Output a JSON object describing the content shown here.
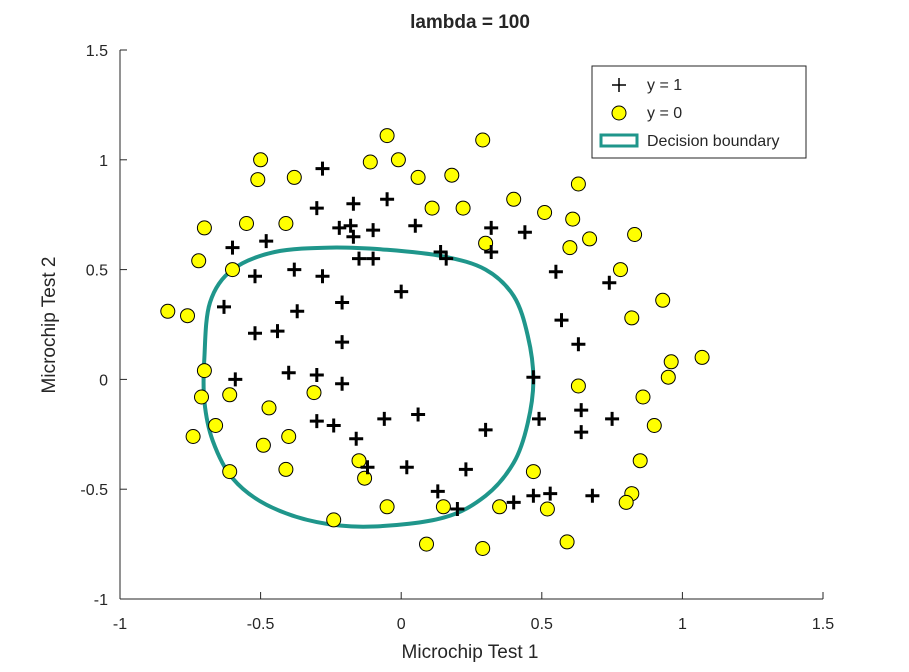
{
  "chart_data": {
    "type": "scatter",
    "title": "lambda = 100",
    "xlabel": "Microchip Test 1",
    "ylabel": "Microchip Test 2",
    "xlim": [
      -1,
      1.5
    ],
    "ylim": [
      -1,
      1.5
    ],
    "xticks": [
      -1,
      -0.5,
      0,
      0.5,
      1,
      1.5
    ],
    "yticks": [
      -1,
      -0.5,
      0,
      0.5,
      1,
      1.5
    ],
    "xtick_labels": [
      "-1",
      "-0.5",
      "0",
      "0.5",
      "1",
      "1.5"
    ],
    "ytick_labels": [
      "-1",
      "-0.5",
      "0",
      "0.5",
      "1",
      "1.5"
    ],
    "grid": false,
    "legend": {
      "position": "top-right",
      "entries": [
        {
          "label": "y = 1",
          "marker": "plus"
        },
        {
          "label": "y = 0",
          "marker": "circle"
        },
        {
          "label": "Decision boundary",
          "marker": "line"
        }
      ]
    },
    "colors": {
      "positive": "#000000",
      "negative_fill": "#ffff00",
      "negative_edge": "#000000",
      "boundary": "#1f968b"
    },
    "series": [
      {
        "name": "y = 1",
        "marker": "plus",
        "points": [
          [
            -0.28,
            0.96
          ],
          [
            -0.3,
            0.78
          ],
          [
            -0.17,
            0.8
          ],
          [
            -0.05,
            0.82
          ],
          [
            -0.22,
            0.69
          ],
          [
            -0.18,
            0.7
          ],
          [
            -0.17,
            0.65
          ],
          [
            -0.1,
            0.68
          ],
          [
            0.05,
            0.7
          ],
          [
            -0.48,
            0.63
          ],
          [
            -0.6,
            0.6
          ],
          [
            -0.38,
            0.5
          ],
          [
            -0.28,
            0.47
          ],
          [
            -0.52,
            0.47
          ],
          [
            -0.15,
            0.55
          ],
          [
            -0.1,
            0.55
          ],
          [
            0.14,
            0.58
          ],
          [
            0.16,
            0.55
          ],
          [
            0.32,
            0.69
          ],
          [
            0.32,
            0.58
          ],
          [
            0.44,
            0.67
          ],
          [
            0.55,
            0.49
          ],
          [
            -0.63,
            0.33
          ],
          [
            -0.37,
            0.31
          ],
          [
            -0.21,
            0.35
          ],
          [
            0.0,
            0.4
          ],
          [
            -0.52,
            0.21
          ],
          [
            -0.44,
            0.22
          ],
          [
            -0.21,
            0.17
          ],
          [
            -0.59,
            0.0
          ],
          [
            -0.4,
            0.03
          ],
          [
            -0.3,
            0.02
          ],
          [
            -0.21,
            -0.02
          ],
          [
            -0.3,
            -0.19
          ],
          [
            -0.24,
            -0.21
          ],
          [
            -0.16,
            -0.27
          ],
          [
            -0.06,
            -0.18
          ],
          [
            0.06,
            -0.16
          ],
          [
            0.3,
            -0.23
          ],
          [
            -0.12,
            -0.4
          ],
          [
            0.02,
            -0.4
          ],
          [
            0.23,
            -0.41
          ],
          [
            0.13,
            -0.51
          ],
          [
            0.2,
            -0.59
          ],
          [
            0.4,
            -0.56
          ],
          [
            0.47,
            -0.53
          ],
          [
            0.53,
            -0.52
          ],
          [
            0.68,
            -0.53
          ],
          [
            0.47,
            0.01
          ],
          [
            0.49,
            -0.18
          ],
          [
            0.57,
            0.27
          ],
          [
            0.63,
            0.16
          ],
          [
            0.64,
            -0.14
          ],
          [
            0.64,
            -0.24
          ],
          [
            0.74,
            0.44
          ],
          [
            0.75,
            -0.18
          ]
        ]
      },
      {
        "name": "y = 0",
        "marker": "circle",
        "points": [
          [
            -0.05,
            1.11
          ],
          [
            0.29,
            1.09
          ],
          [
            -0.5,
            1.0
          ],
          [
            -0.11,
            0.99
          ],
          [
            -0.01,
            1.0
          ],
          [
            -0.51,
            0.91
          ],
          [
            -0.38,
            0.92
          ],
          [
            0.06,
            0.92
          ],
          [
            0.18,
            0.93
          ],
          [
            0.63,
            0.89
          ],
          [
            -0.7,
            0.69
          ],
          [
            -0.55,
            0.71
          ],
          [
            -0.41,
            0.71
          ],
          [
            0.11,
            0.78
          ],
          [
            0.22,
            0.78
          ],
          [
            0.4,
            0.82
          ],
          [
            0.51,
            0.76
          ],
          [
            0.61,
            0.73
          ],
          [
            0.3,
            0.62
          ],
          [
            0.6,
            0.6
          ],
          [
            0.67,
            0.64
          ],
          [
            0.83,
            0.66
          ],
          [
            -0.72,
            0.54
          ],
          [
            -0.6,
            0.5
          ],
          [
            0.78,
            0.5
          ],
          [
            -0.83,
            0.31
          ],
          [
            -0.76,
            0.29
          ],
          [
            0.82,
            0.28
          ],
          [
            0.93,
            0.36
          ],
          [
            -0.7,
            0.04
          ],
          [
            0.96,
            0.08
          ],
          [
            0.95,
            0.01
          ],
          [
            1.07,
            0.1
          ],
          [
            -0.71,
            -0.08
          ],
          [
            -0.61,
            -0.07
          ],
          [
            -0.31,
            -0.06
          ],
          [
            0.63,
            -0.03
          ],
          [
            0.86,
            -0.08
          ],
          [
            -0.47,
            -0.13
          ],
          [
            -0.66,
            -0.21
          ],
          [
            -0.74,
            -0.26
          ],
          [
            -0.4,
            -0.26
          ],
          [
            -0.49,
            -0.3
          ],
          [
            0.9,
            -0.21
          ],
          [
            0.85,
            -0.37
          ],
          [
            -0.61,
            -0.42
          ],
          [
            -0.41,
            -0.41
          ],
          [
            -0.15,
            -0.37
          ],
          [
            -0.13,
            -0.45
          ],
          [
            0.47,
            -0.42
          ],
          [
            0.82,
            -0.52
          ],
          [
            0.8,
            -0.56
          ],
          [
            -0.05,
            -0.58
          ],
          [
            0.15,
            -0.58
          ],
          [
            0.35,
            -0.58
          ],
          [
            0.52,
            -0.59
          ],
          [
            -0.24,
            -0.64
          ],
          [
            0.09,
            -0.75
          ],
          [
            0.29,
            -0.77
          ],
          [
            0.59,
            -0.74
          ]
        ]
      },
      {
        "name": "Decision boundary",
        "marker": "line",
        "closed": true,
        "points": [
          [
            -0.7,
            0.1
          ],
          [
            -0.68,
            0.35
          ],
          [
            -0.6,
            0.5
          ],
          [
            -0.45,
            0.58
          ],
          [
            -0.25,
            0.6
          ],
          [
            -0.05,
            0.59
          ],
          [
            0.15,
            0.56
          ],
          [
            0.3,
            0.5
          ],
          [
            0.4,
            0.38
          ],
          [
            0.45,
            0.2
          ],
          [
            0.47,
            0.0
          ],
          [
            0.45,
            -0.2
          ],
          [
            0.4,
            -0.38
          ],
          [
            0.3,
            -0.53
          ],
          [
            0.15,
            -0.63
          ],
          [
            -0.1,
            -0.67
          ],
          [
            -0.3,
            -0.65
          ],
          [
            -0.48,
            -0.57
          ],
          [
            -0.6,
            -0.45
          ],
          [
            -0.67,
            -0.28
          ],
          [
            -0.7,
            -0.1
          ]
        ]
      }
    ]
  }
}
